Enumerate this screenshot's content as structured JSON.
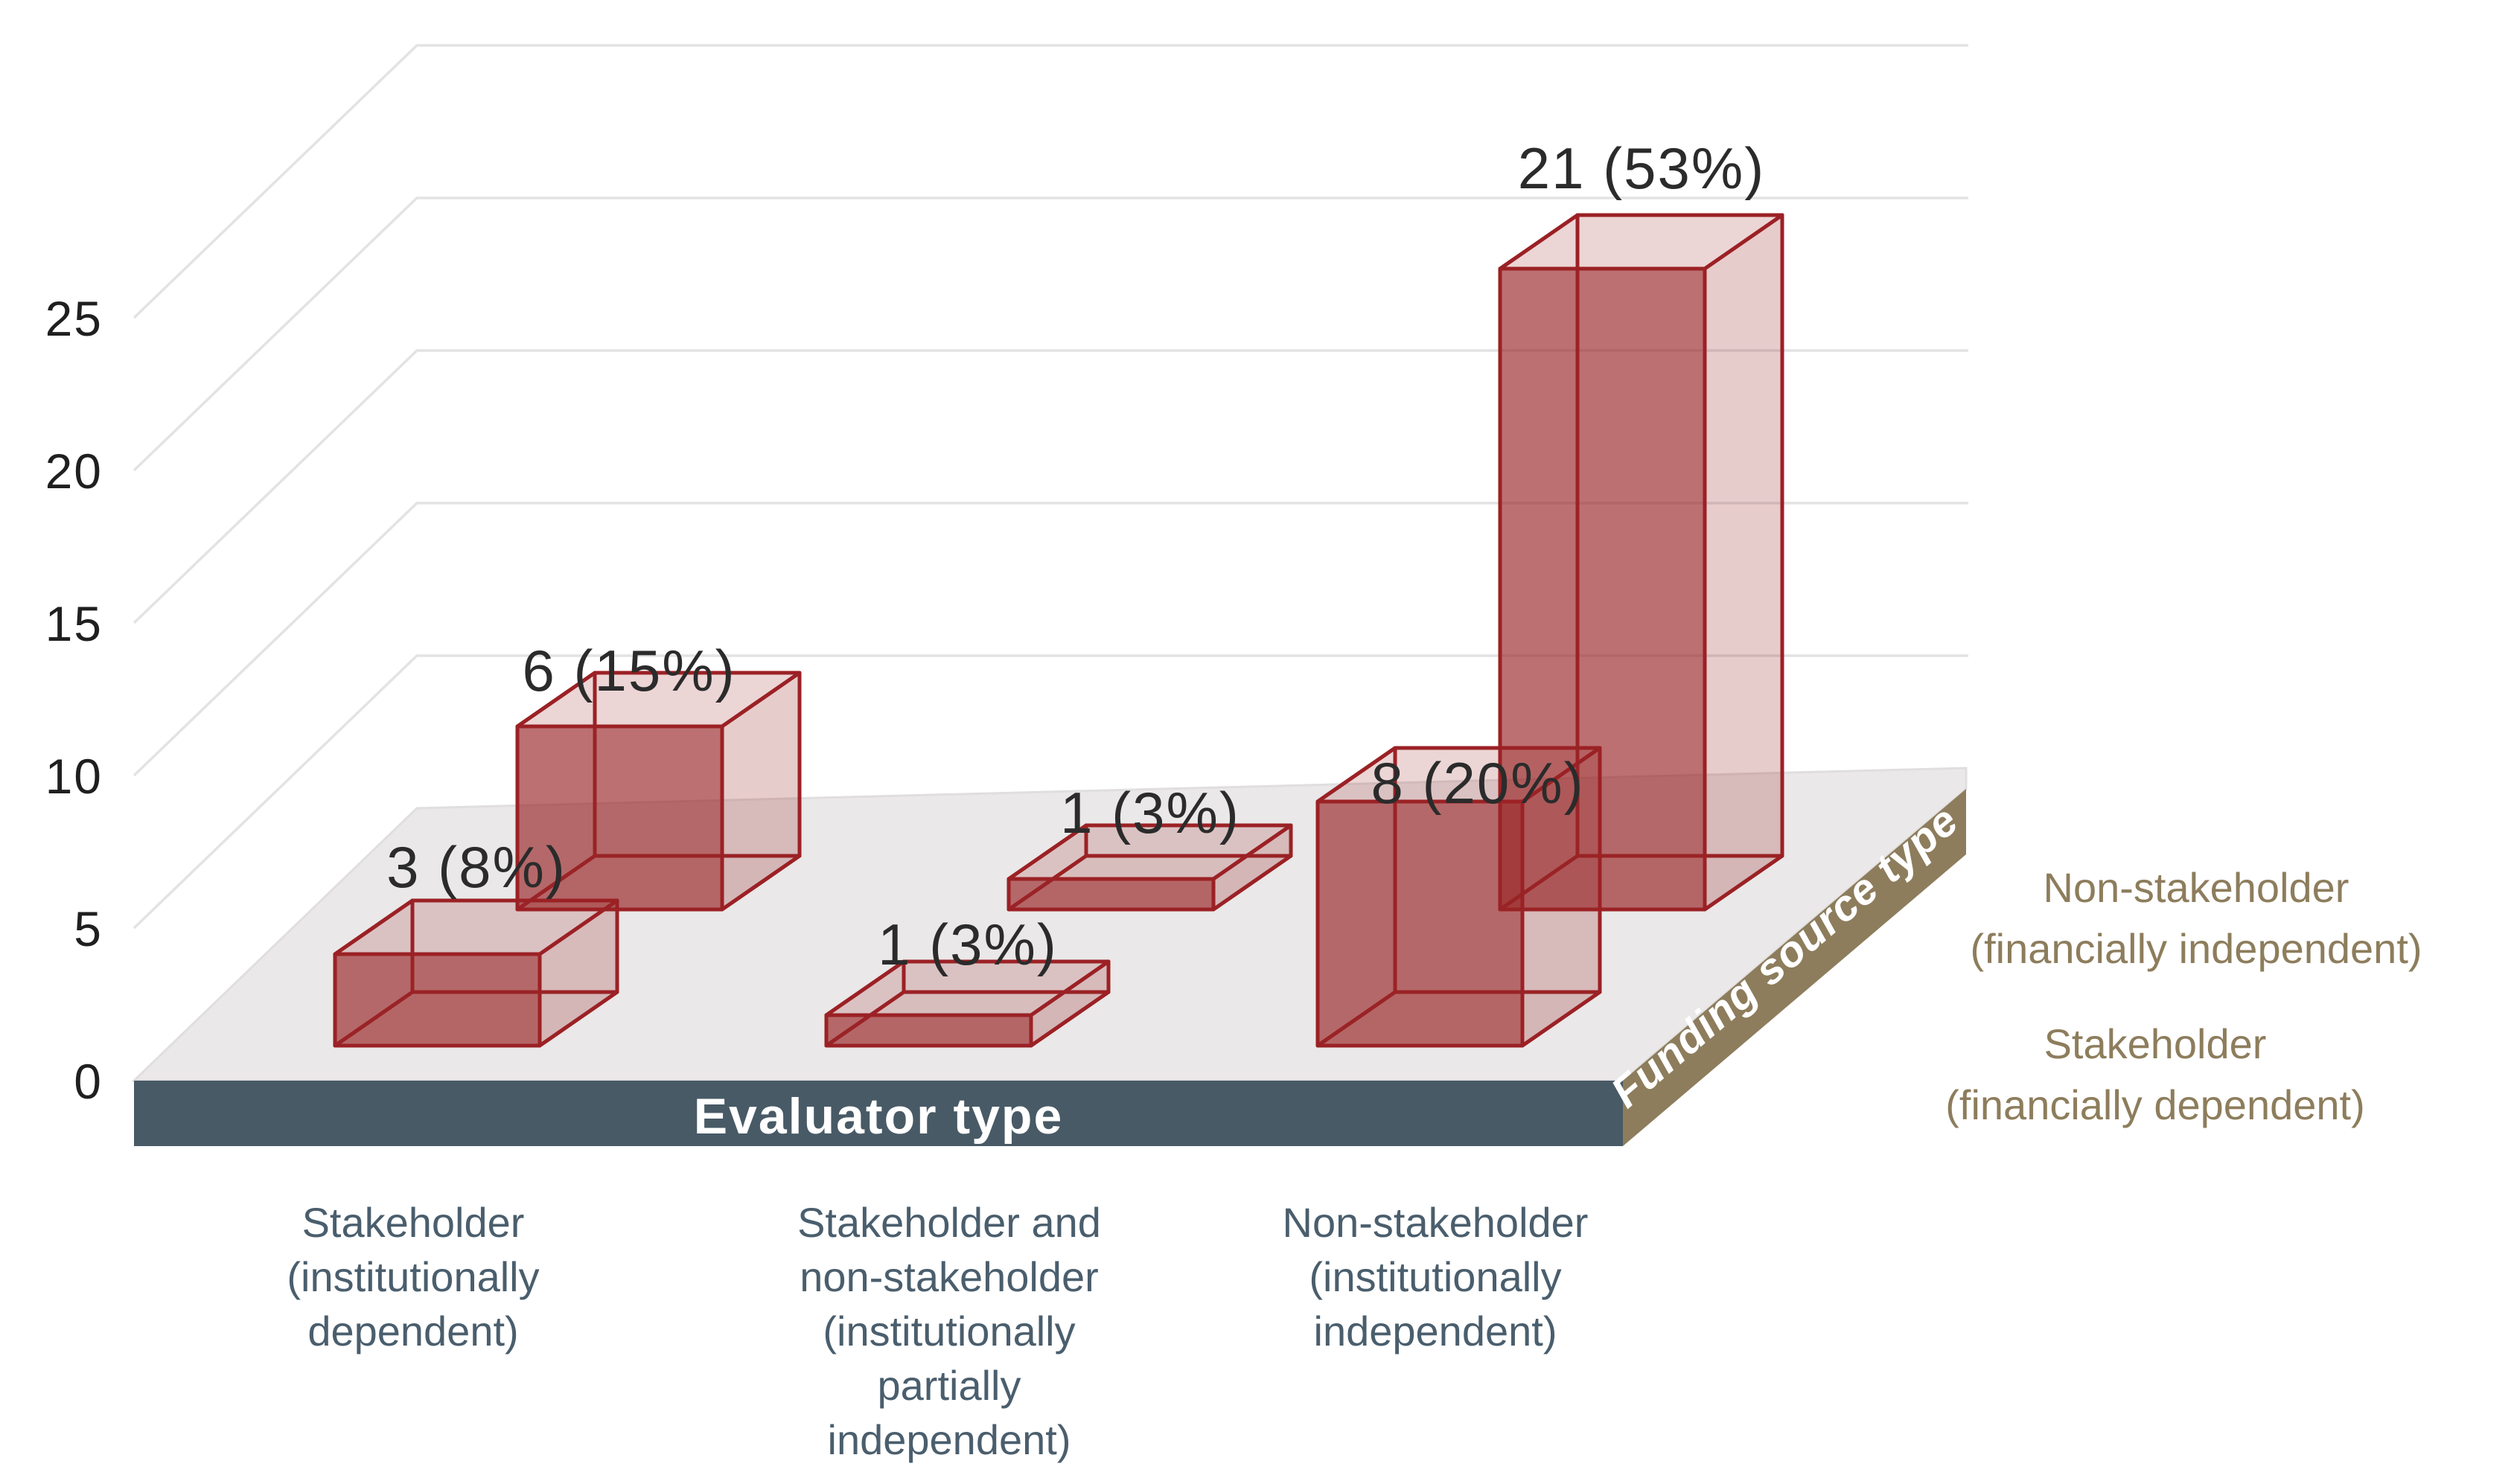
{
  "chart_data": {
    "type": "bar",
    "projection": "3d",
    "ylim": [
      0,
      25
    ],
    "yticks": [
      0,
      5,
      10,
      15,
      20,
      25
    ],
    "grid": true,
    "xlabel": "Evaluator type",
    "zlabel": "Funding source type",
    "categories": [
      {
        "name": "Stakeholder (institutionally dependent)",
        "lines": [
          "Stakeholder",
          "(institutionally",
          "dependent)"
        ]
      },
      {
        "name": "Stakeholder and non-stakeholder (institutionally partially independent)",
        "lines": [
          "Stakeholder and",
          "non-stakeholder",
          "(institutionally",
          "partially",
          "independent)"
        ]
      },
      {
        "name": "Non-stakeholder (institutionally independent)",
        "lines": [
          "Non-stakeholder",
          "(institutionally",
          "independent)"
        ]
      }
    ],
    "series": [
      {
        "name": "Non-stakeholder (financially independent)",
        "lines": [
          "Non-stakeholder",
          "(financially independent)"
        ],
        "depth_row": "back",
        "values": [
          6,
          1,
          21
        ],
        "value_labels": [
          "6 (15%)",
          "1 (3%)",
          "21 (53%)"
        ]
      },
      {
        "name": "Stakeholder (financially dependent)",
        "lines": [
          "Stakeholder",
          "(financially dependent)"
        ],
        "depth_row": "front",
        "values": [
          3,
          1,
          8
        ],
        "value_labels": [
          "3 (8%)",
          "1 (3%)",
          "8 (20%)"
        ]
      }
    ],
    "legend_position": "right"
  },
  "colors": {
    "background": "#ffffff",
    "bar_outline": "#9b2125",
    "bar_front_fill": "rgba(153,37,38,0.62)",
    "bar_side_fill": "rgba(153,37,38,0.15)",
    "bar_top_fill": "rgba(153,37,38,0.10)",
    "bar_back_fill": "rgba(153,37,38,0.10)",
    "bar_left_fill": "rgba(153,37,38,0.10)",
    "bar_bottom_fill": "rgba(153,37,38,0.13)",
    "floor": "#eae8e8",
    "floor_front_face": "#485a66",
    "funding_ribbon": "#8d7d5c",
    "gridline": "#e3e3e3",
    "tick_text": "#1f1f1f",
    "value_label_text": "#2b2b2b",
    "category_text": "#4a5e6d",
    "row_label_text": "#8d7d5c",
    "axis_title_text": "#ffffff"
  }
}
